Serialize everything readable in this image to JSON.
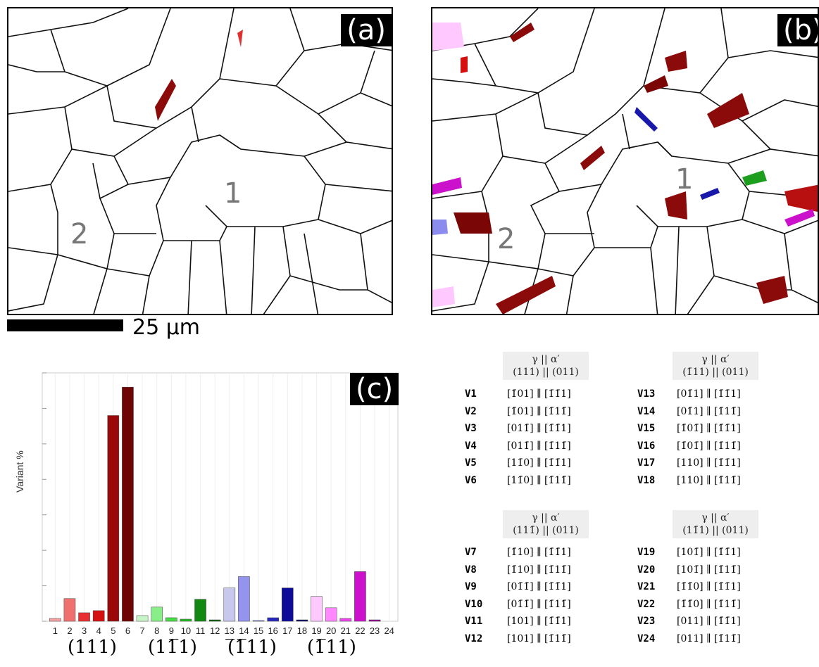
{
  "panels": {
    "a": {
      "label": "(a)",
      "grain1": "1",
      "grain2": "2"
    },
    "b": {
      "label": "(b)",
      "grain1": "1",
      "grain2": "2"
    },
    "c": {
      "label": "(c)"
    }
  },
  "scale_bar": {
    "label": "25 μm"
  },
  "chart_data": {
    "type": "bar",
    "title": "",
    "xlabel": "",
    "ylabel": "Variant %",
    "categories": [
      "1",
      "2",
      "3",
      "4",
      "5",
      "6",
      "7",
      "8",
      "9",
      "10",
      "11",
      "12",
      "13",
      "14",
      "15",
      "16",
      "17",
      "18",
      "19",
      "20",
      "21",
      "22",
      "23",
      "24"
    ],
    "values": [
      0.4,
      3.2,
      1.2,
      1.5,
      29.0,
      33.0,
      0.8,
      2.0,
      0.5,
      0.3,
      3.1,
      0.2,
      4.7,
      6.3,
      0.1,
      0.5,
      4.7,
      0.2,
      3.5,
      1.9,
      0.4,
      7.0,
      0.2,
      0.0
    ],
    "colors": [
      "#f4a2a2",
      "#f07070",
      "#e83030",
      "#d41010",
      "#9a0808",
      "#6e0404",
      "#c8f5c8",
      "#88ee88",
      "#44dd44",
      "#22bb22",
      "#118811",
      "#066006",
      "#c8c8ee",
      "#9494ee",
      "#6060dd",
      "#2828bb",
      "#0c0c99",
      "#04046a",
      "#ffc8ff",
      "#ff88ff",
      "#ee44ee",
      "#cc11cc",
      "#990099",
      "#660066"
    ],
    "ylim": [
      0,
      35
    ],
    "grid": true,
    "group_labels": [
      "(111)",
      "(11̅1)",
      "(̅1̅11)",
      "(1̅11)"
    ]
  },
  "tables": [
    {
      "header_line1": "γ || α′",
      "header_line2": "(111) || (011)",
      "rows": [
        {
          "v": "V1",
          "rel": "[1̄01] ∥ [1̄1̄1]"
        },
        {
          "v": "V2",
          "rel": "[1̄01] ∥ [1̄11̄]"
        },
        {
          "v": "V3",
          "rel": "[011̄] ∥ [1̄1̄1]"
        },
        {
          "v": "V4",
          "rel": "[011̄] ∥ [1̄11̄]"
        },
        {
          "v": "V5",
          "rel": "[11̄0] ∥ [1̄1̄1]"
        },
        {
          "v": "V6",
          "rel": "[11̄0] ∥ [1̄11̄]"
        }
      ]
    },
    {
      "header_line1": "γ || α′",
      "header_line2": "(1̄11) || (011)",
      "rows": [
        {
          "v": "V13",
          "rel": "[01̄1] ∥ [1̄1̄1]"
        },
        {
          "v": "V14",
          "rel": "[01̄1] ∥ [1̄11̄]"
        },
        {
          "v": "V15",
          "rel": "[1̄01̄] ∥ [1̄1̄1]"
        },
        {
          "v": "V16",
          "rel": "[1̄01̄] ∥ [1̄11̄]"
        },
        {
          "v": "V17",
          "rel": "[110] ∥ [1̄1̄1]"
        },
        {
          "v": "V18",
          "rel": "[110] ∥ [1̄11̄]"
        }
      ]
    },
    {
      "header_line1": "γ || α′",
      "header_line2": "(111̄) || (011)",
      "rows": [
        {
          "v": "V7",
          "rel": "[1̄10] ∥ [1̄1̄1]"
        },
        {
          "v": "V8",
          "rel": "[1̄10] ∥ [1̄11̄]"
        },
        {
          "v": "V9",
          "rel": "[01̄1̄] ∥ [1̄1̄1]"
        },
        {
          "v": "V10",
          "rel": "[01̄1̄] ∥ [1̄11̄]"
        },
        {
          "v": "V11",
          "rel": "[101] ∥ [1̄1̄1]"
        },
        {
          "v": "V12",
          "rel": "[101] ∥ [1̄11̄]"
        }
      ]
    },
    {
      "header_line1": "γ || α′",
      "header_line2": "(11̄1) || (011)",
      "rows": [
        {
          "v": "V19",
          "rel": "[101̄] ∥ [1̄1̄1]"
        },
        {
          "v": "V20",
          "rel": "[101̄] ∥ [1̄11̄]"
        },
        {
          "v": "V21",
          "rel": "[1̄1̄0] ∥ [1̄1̄1]"
        },
        {
          "v": "V22",
          "rel": "[1̄1̄0] ∥ [1̄11̄]"
        },
        {
          "v": "V23",
          "rel": "[011] ∥ [1̄1̄1]"
        },
        {
          "v": "V24",
          "rel": "[011] ∥ [1̄11̄]"
        }
      ]
    }
  ]
}
